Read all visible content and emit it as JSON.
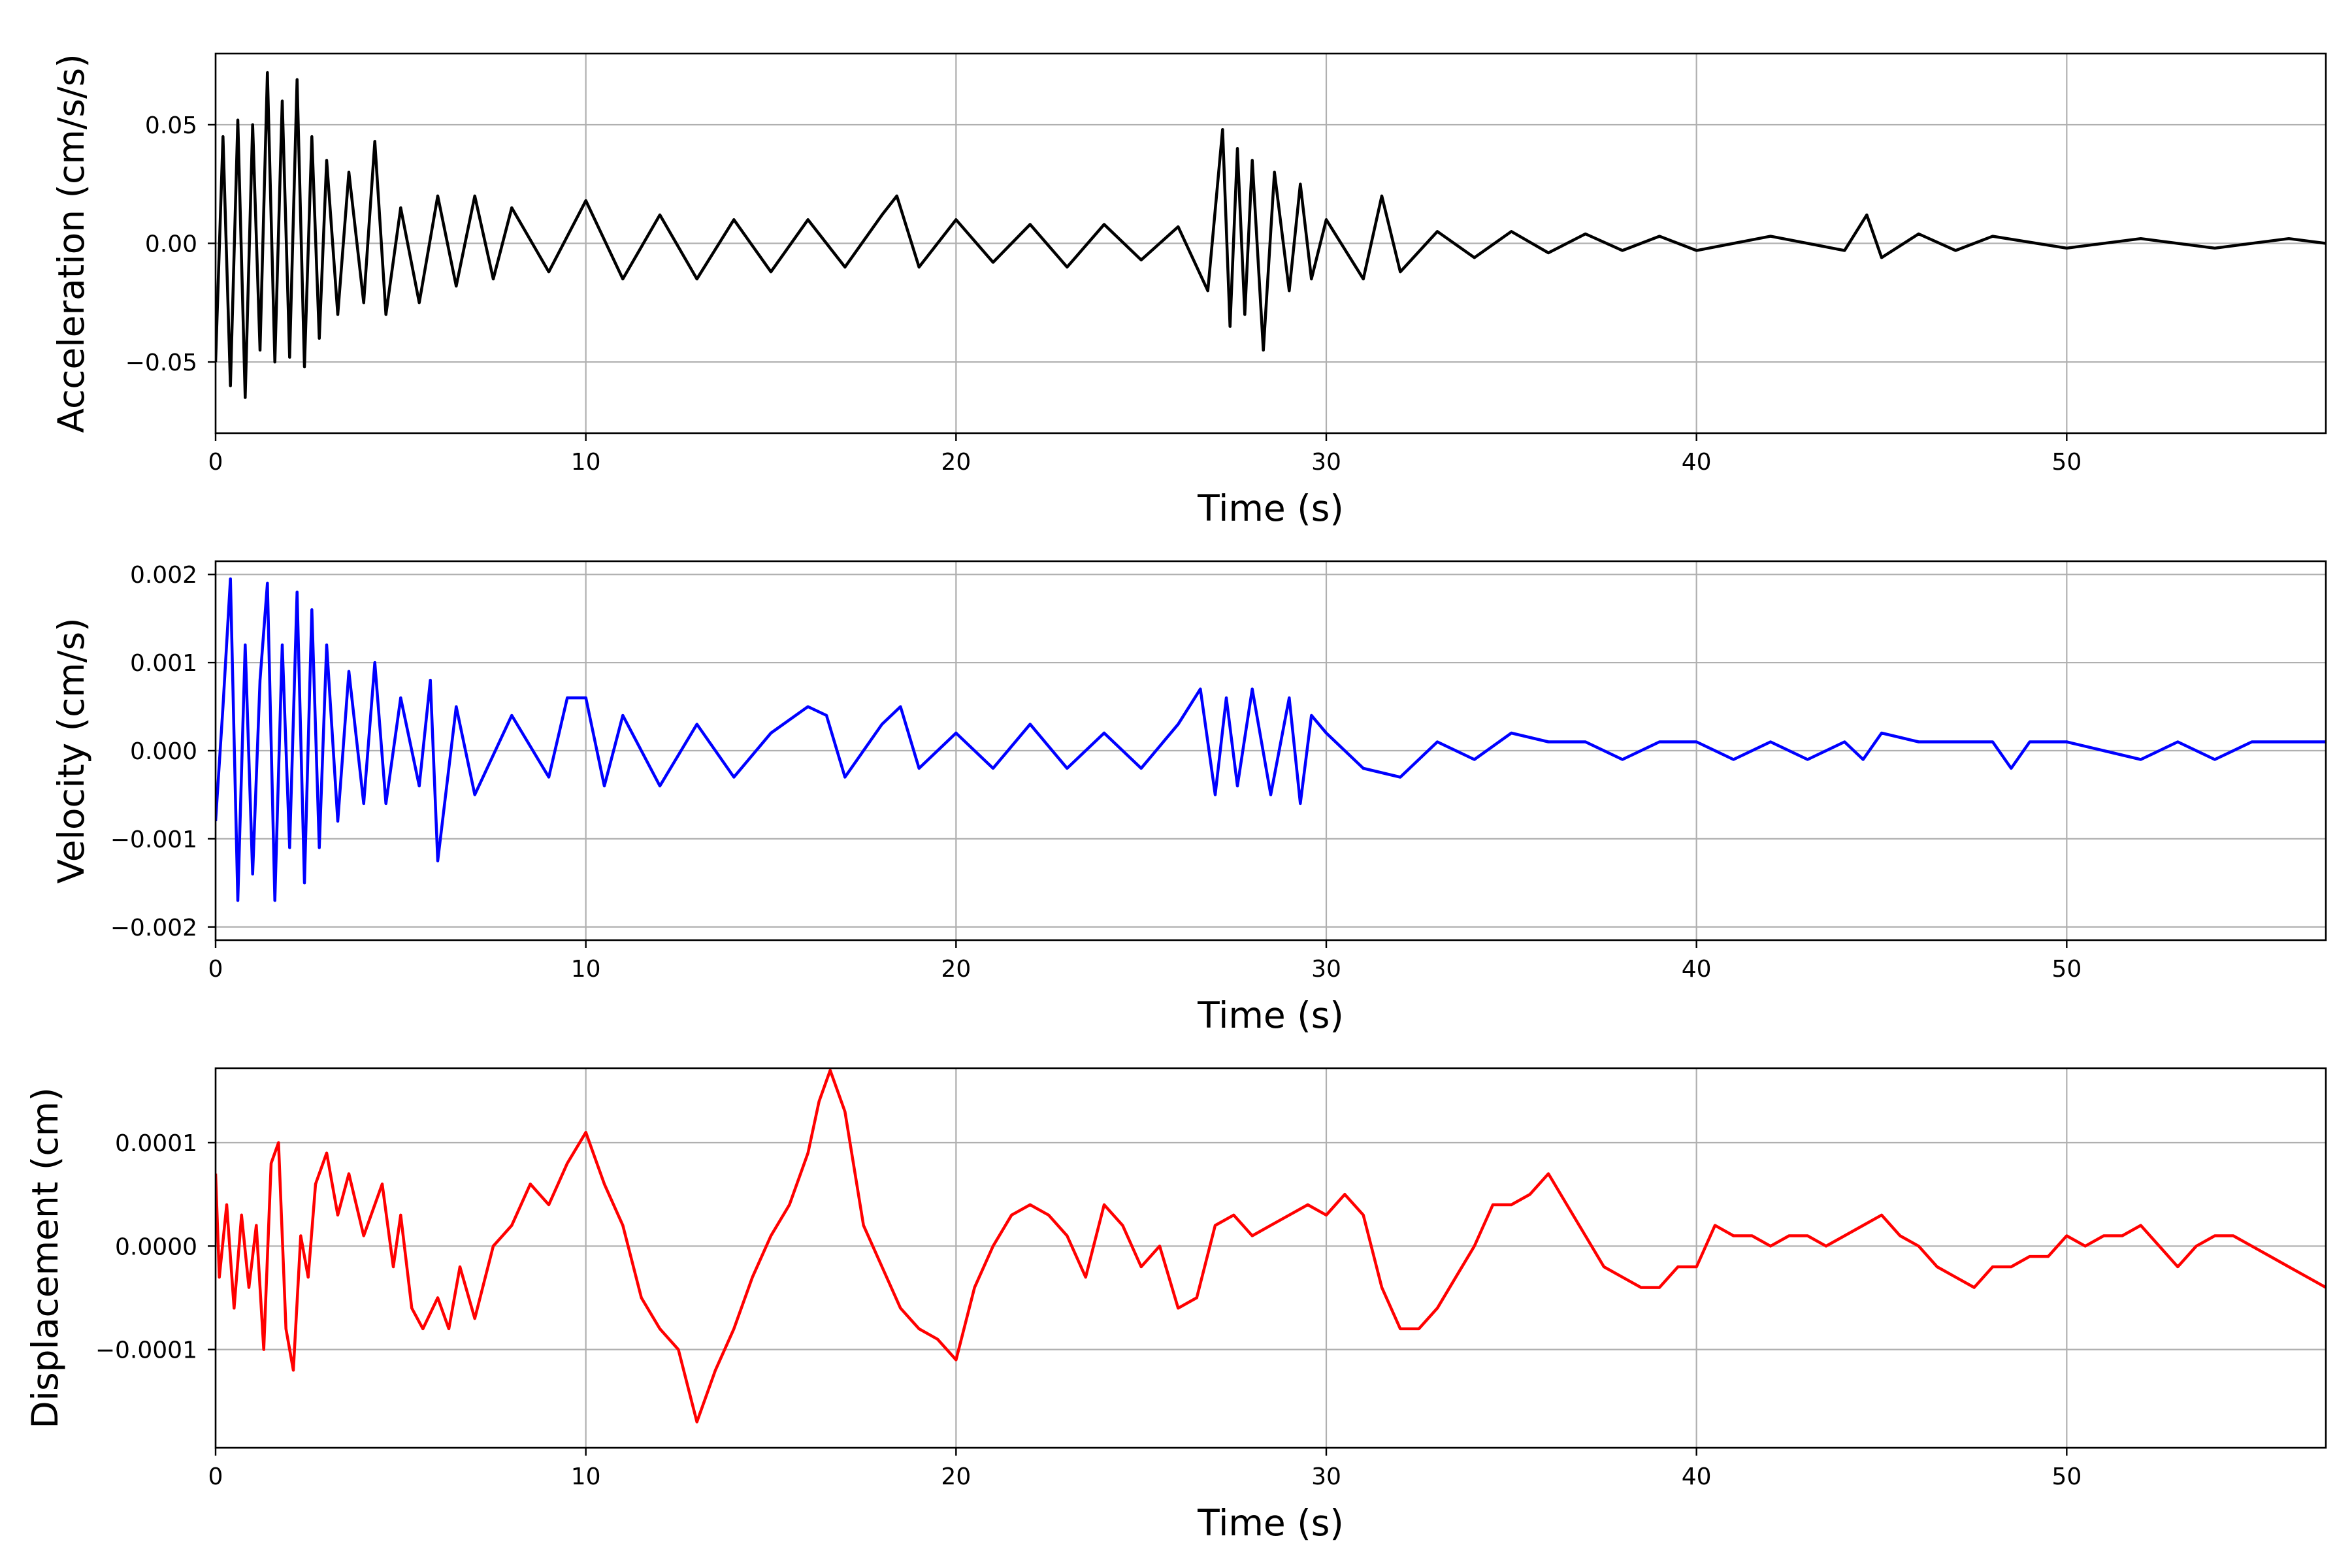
{
  "chart_data": [
    {
      "type": "line",
      "title": "",
      "xlabel": "Time (s)",
      "ylabel": "Acceleration (cm/s/s)",
      "xlim": [
        0,
        57
      ],
      "ylim": [
        -0.08,
        0.08
      ],
      "xticks": [
        0,
        10,
        20,
        30,
        40,
        50
      ],
      "xtick_labels": [
        "0",
        "10",
        "20",
        "30",
        "40",
        "50"
      ],
      "yticks": [
        -0.05,
        0.0,
        0.05
      ],
      "ytick_labels": [
        "−0.05",
        "0.00",
        "0.05"
      ],
      "grid": true,
      "color": "#000000",
      "series": [
        {
          "x": [
            0,
            0.2,
            0.4,
            0.6,
            0.8,
            1.0,
            1.2,
            1.4,
            1.6,
            1.8,
            2.0,
            2.2,
            2.4,
            2.6,
            2.8,
            3.0,
            3.3,
            3.6,
            4.0,
            4.3,
            4.6,
            5.0,
            5.5,
            6.0,
            6.5,
            7.0,
            7.5,
            8.0,
            9.0,
            10.0,
            11.0,
            12.0,
            13.0,
            14.0,
            15.0,
            16.0,
            17.0,
            18.0,
            18.4,
            19.0,
            20.0,
            21.0,
            22.0,
            23.0,
            24.0,
            25.0,
            26.0,
            26.8,
            27.2,
            27.4,
            27.6,
            27.8,
            28.0,
            28.3,
            28.6,
            29.0,
            29.3,
            29.6,
            30.0,
            31.0,
            31.5,
            32.0,
            33.0,
            34.0,
            35.0,
            36.0,
            37.0,
            38.0,
            39.0,
            40.0,
            42.0,
            44.0,
            44.6,
            45.0,
            46.0,
            47.0,
            48.0,
            50.0,
            52.0,
            54.0,
            56.0,
            57.0
          ],
          "y": [
            -0.05,
            0.045,
            -0.06,
            0.052,
            -0.065,
            0.05,
            -0.045,
            0.072,
            -0.05,
            0.06,
            -0.048,
            0.069,
            -0.052,
            0.045,
            -0.04,
            0.035,
            -0.03,
            0.03,
            -0.025,
            0.043,
            -0.03,
            0.015,
            -0.025,
            0.02,
            -0.018,
            0.02,
            -0.015,
            0.015,
            -0.012,
            0.018,
            -0.015,
            0.012,
            -0.015,
            0.01,
            -0.012,
            0.01,
            -0.01,
            0.012,
            0.02,
            -0.01,
            0.01,
            -0.008,
            0.008,
            -0.01,
            0.008,
            -0.007,
            0.007,
            -0.02,
            0.048,
            -0.035,
            0.04,
            -0.03,
            0.035,
            -0.045,
            0.03,
            -0.02,
            0.025,
            -0.015,
            0.01,
            -0.015,
            0.02,
            -0.012,
            0.005,
            -0.006,
            0.005,
            -0.004,
            0.004,
            -0.003,
            0.003,
            -0.003,
            0.003,
            -0.003,
            0.012,
            -0.006,
            0.004,
            -0.003,
            0.003,
            -0.002,
            0.002,
            -0.002,
            0.002,
            0.0
          ]
        }
      ]
    },
    {
      "type": "line",
      "title": "",
      "xlabel": "Time (s)",
      "ylabel": "Velocity (cm/s)",
      "xlim": [
        0,
        57
      ],
      "ylim": [
        -0.00215,
        0.00215
      ],
      "xticks": [
        0,
        10,
        20,
        30,
        40,
        50
      ],
      "xtick_labels": [
        "0",
        "10",
        "20",
        "30",
        "40",
        "50"
      ],
      "yticks": [
        -0.002,
        -0.001,
        0.0,
        0.001,
        0.002
      ],
      "ytick_labels": [
        "−0.002",
        "−0.001",
        "0.000",
        "0.001",
        "0.002"
      ],
      "grid": true,
      "color": "#0000ff",
      "series": [
        {
          "x": [
            0,
            0.2,
            0.4,
            0.6,
            0.8,
            1.0,
            1.2,
            1.4,
            1.6,
            1.8,
            2.0,
            2.2,
            2.4,
            2.6,
            2.8,
            3.0,
            3.3,
            3.6,
            4.0,
            4.3,
            4.6,
            5.0,
            5.5,
            5.8,
            6.0,
            6.5,
            7.0,
            8.0,
            9.0,
            9.5,
            10.0,
            10.5,
            11.0,
            12.0,
            13.0,
            14.0,
            15.0,
            16.0,
            16.5,
            17.0,
            18.0,
            18.5,
            19.0,
            20.0,
            21.0,
            22.0,
            23.0,
            24.0,
            25.0,
            26.0,
            26.6,
            27.0,
            27.3,
            27.6,
            28.0,
            28.5,
            29.0,
            29.3,
            29.6,
            30.0,
            31.0,
            32.0,
            33.0,
            34.0,
            35.0,
            36.0,
            37.0,
            38.0,
            39.0,
            40.0,
            41.0,
            42.0,
            43.0,
            44.0,
            44.5,
            45.0,
            46.0,
            47.0,
            48.0,
            48.5,
            49.0,
            50.0,
            51.0,
            52.0,
            53.0,
            54.0,
            55.0,
            56.0,
            57.0
          ],
          "y": [
            -0.0008,
            0.0005,
            0.00195,
            -0.0017,
            0.0012,
            -0.0014,
            0.0008,
            0.0019,
            -0.0017,
            0.0012,
            -0.0011,
            0.0018,
            -0.0015,
            0.0016,
            -0.0011,
            0.0012,
            -0.0008,
            0.0009,
            -0.0006,
            0.001,
            -0.0006,
            0.0006,
            -0.0004,
            0.0008,
            -0.00125,
            0.0005,
            -0.0005,
            0.0004,
            -0.0003,
            0.0006,
            0.0006,
            -0.0004,
            0.0004,
            -0.0004,
            0.0003,
            -0.0003,
            0.0002,
            0.0005,
            0.0004,
            -0.0003,
            0.0003,
            0.0005,
            -0.0002,
            0.0002,
            -0.0002,
            0.0003,
            -0.0002,
            0.0002,
            -0.0002,
            0.0003,
            0.0007,
            -0.0005,
            0.0006,
            -0.0004,
            0.0007,
            -0.0005,
            0.0006,
            -0.0006,
            0.0004,
            0.0002,
            -0.0002,
            -0.0003,
            0.0001,
            -0.0001,
            0.0002,
            0.0001,
            0.0001,
            -0.0001,
            0.0001,
            0.0001,
            -0.0001,
            0.0001,
            -0.0001,
            0.0001,
            -0.0001,
            0.0002,
            0.0001,
            0.0001,
            0.0001,
            -0.0002,
            0.0001,
            0.0001,
            0.0,
            -0.0001,
            0.0001,
            -0.0001,
            0.0001,
            0.0001,
            0.0001
          ]
        }
      ]
    },
    {
      "type": "line",
      "title": "",
      "xlabel": "Time (s)",
      "ylabel": "Displacement (cm)",
      "xlim": [
        0,
        57
      ],
      "ylim": [
        -0.000195,
        0.000172
      ],
      "xticks": [
        0,
        10,
        20,
        30,
        40,
        50
      ],
      "xtick_labels": [
        "0",
        "10",
        "20",
        "30",
        "40",
        "50"
      ],
      "yticks": [
        -0.0001,
        0.0,
        0.0001
      ],
      "ytick_labels": [
        "−0.0001",
        "0.0000",
        "0.0001"
      ],
      "grid": true,
      "color": "#ff0000",
      "series": [
        {
          "x": [
            0,
            0.1,
            0.3,
            0.5,
            0.7,
            0.9,
            1.1,
            1.3,
            1.5,
            1.7,
            1.9,
            2.1,
            2.3,
            2.5,
            2.7,
            3.0,
            3.3,
            3.6,
            4.0,
            4.5,
            4.8,
            5.0,
            5.3,
            5.6,
            6.0,
            6.3,
            6.6,
            7.0,
            7.5,
            8.0,
            8.5,
            9.0,
            9.5,
            10.0,
            10.5,
            11.0,
            11.5,
            12.0,
            12.5,
            13.0,
            13.5,
            14.0,
            14.5,
            15.0,
            15.5,
            16.0,
            16.3,
            16.6,
            17.0,
            17.5,
            18.0,
            18.5,
            19.0,
            19.5,
            20.0,
            20.5,
            21.0,
            21.5,
            22.0,
            22.5,
            23.0,
            23.5,
            24.0,
            24.5,
            25.0,
            25.5,
            26.0,
            26.5,
            27.0,
            27.5,
            28.0,
            28.5,
            29.0,
            29.5,
            30.0,
            30.5,
            31.0,
            31.5,
            32.0,
            32.5,
            33.0,
            33.5,
            34.0,
            34.5,
            35.0,
            35.5,
            36.0,
            36.5,
            37.0,
            37.5,
            38.0,
            38.5,
            39.0,
            39.5,
            40.0,
            40.5,
            41.0,
            41.5,
            42.0,
            42.5,
            43.0,
            43.5,
            44.0,
            44.5,
            45.0,
            45.5,
            46.0,
            46.5,
            47.0,
            47.5,
            48.0,
            48.5,
            49.0,
            49.5,
            50.0,
            50.5,
            51.0,
            51.5,
            52.0,
            52.5,
            53.0,
            53.5,
            54.0,
            54.5,
            55.0,
            55.5,
            56.0,
            56.5,
            57.0
          ],
          "y": [
            7e-05,
            -3e-05,
            4e-05,
            -6e-05,
            3e-05,
            -4e-05,
            2e-05,
            -0.0001,
            8e-05,
            0.0001,
            -8e-05,
            -0.00012,
            1e-05,
            -3e-05,
            6e-05,
            9e-05,
            3e-05,
            7e-05,
            1e-05,
            6e-05,
            -2e-05,
            3e-05,
            -6e-05,
            -8e-05,
            -5e-05,
            -8e-05,
            -2e-05,
            -7e-05,
            0.0,
            2e-05,
            6e-05,
            4e-05,
            8e-05,
            0.00011,
            6e-05,
            2e-05,
            -5e-05,
            -8e-05,
            -0.0001,
            -0.00017,
            -0.00012,
            -8e-05,
            -3e-05,
            1e-05,
            4e-05,
            9e-05,
            0.00014,
            0.00017,
            0.00013,
            2e-05,
            -2e-05,
            -6e-05,
            -8e-05,
            -9e-05,
            -0.00011,
            -4e-05,
            0.0,
            3e-05,
            4e-05,
            3e-05,
            1e-05,
            -3e-05,
            4e-05,
            2e-05,
            -2e-05,
            0.0,
            -6e-05,
            -5e-05,
            2e-05,
            3e-05,
            1e-05,
            2e-05,
            3e-05,
            4e-05,
            3e-05,
            5e-05,
            3e-05,
            -4e-05,
            -8e-05,
            -8e-05,
            -6e-05,
            -3e-05,
            0.0,
            4e-05,
            4e-05,
            5e-05,
            7e-05,
            4e-05,
            1e-05,
            -2e-05,
            -3e-05,
            -4e-05,
            -4e-05,
            -2e-05,
            -2e-05,
            2e-05,
            1e-05,
            1e-05,
            0.0,
            1e-05,
            1e-05,
            0.0,
            1e-05,
            2e-05,
            3e-05,
            1e-05,
            0.0,
            -2e-05,
            -3e-05,
            -4e-05,
            -2e-05,
            -2e-05,
            -1e-05,
            -1e-05,
            1e-05,
            0.0,
            1e-05,
            1e-05,
            2e-05,
            0.0,
            -2e-05,
            0.0,
            1e-05,
            1e-05,
            0.0,
            -1e-05,
            -2e-05,
            -3e-05,
            -4e-05
          ]
        }
      ]
    }
  ]
}
